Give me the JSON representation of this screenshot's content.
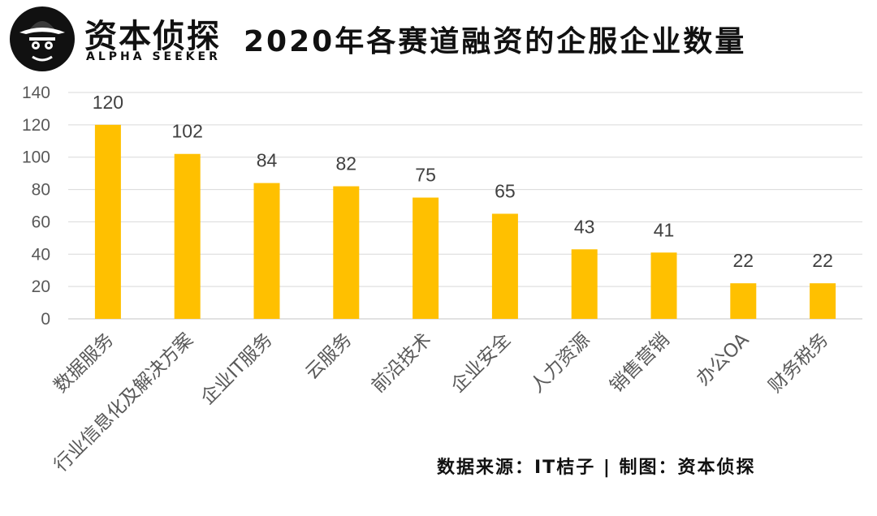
{
  "header": {
    "brand_name": "资本侦探",
    "brand_tagline": "ALPHA SEEKER",
    "title": "2020年各赛道融资的企服企业数量"
  },
  "footer": {
    "source": "数据来源：IT桔子 | 制图：资本侦探"
  },
  "colors": {
    "bar": "#FFC000",
    "grid": "#D9D9D9",
    "axis_text": "#595959",
    "label_text": "#404040"
  },
  "chart_data": {
    "type": "bar",
    "title": "2020年各赛道融资的企服企业数量",
    "xlabel": "",
    "ylabel": "",
    "categories": [
      "数据服务",
      "行业信息化及解决方案",
      "企业IT服务",
      "云服务",
      "前沿技术",
      "企业安全",
      "人力资源",
      "销售营销",
      "办公OA",
      "财务税务"
    ],
    "values": [
      120,
      102,
      84,
      82,
      75,
      65,
      43,
      41,
      22,
      22
    ],
    "ylim": [
      0,
      140
    ],
    "yticks": [
      0,
      20,
      40,
      60,
      80,
      100,
      120,
      140
    ],
    "grid": true,
    "data_labels": true
  }
}
